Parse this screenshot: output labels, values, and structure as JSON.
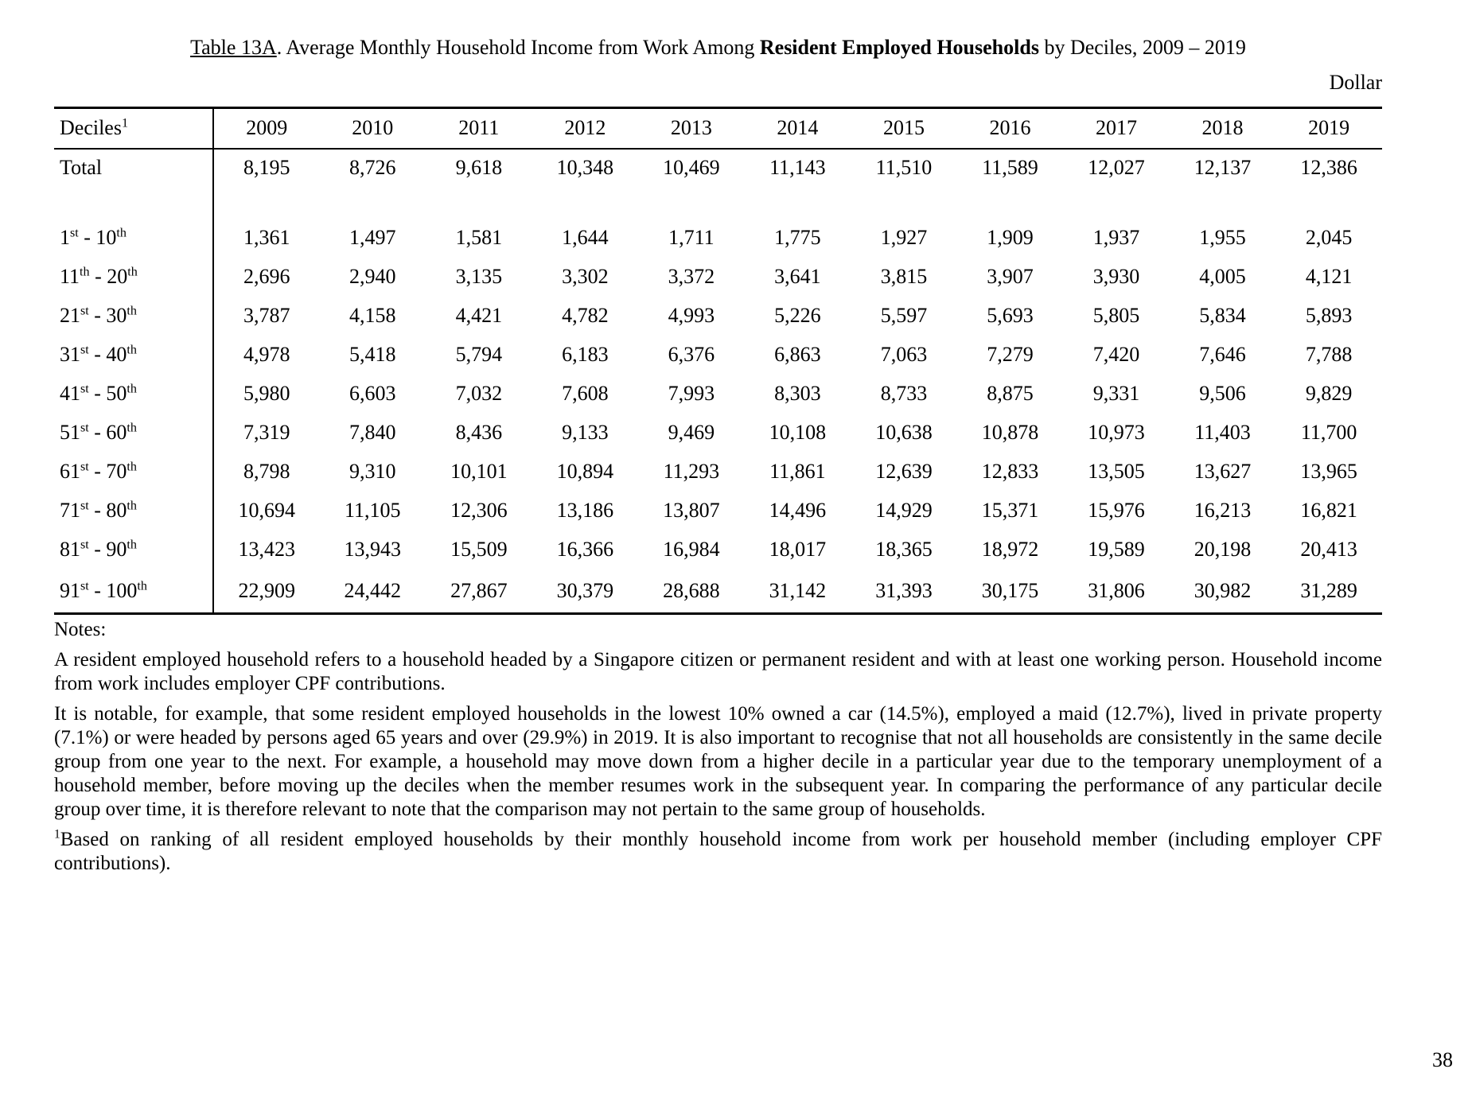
{
  "title": {
    "parts": [
      {
        "text": "Table 13A",
        "underline": true
      },
      {
        "text": ". Average Monthly Household Income from Work Among "
      },
      {
        "text": "Resident Employed Households",
        "bold": true
      },
      {
        "text": " by Deciles, 2009 – 2019"
      }
    ]
  },
  "chart_data": {
    "type": "table",
    "title": "Table 13A. Average Monthly Household Income from Work Among Resident Employed Households by Deciles, 2009 – 2019",
    "unit": "Dollar",
    "row_header": "Deciles^{1}",
    "columns": [
      "2009",
      "2010",
      "2011",
      "2012",
      "2013",
      "2014",
      "2015",
      "2016",
      "2017",
      "2018",
      "2019"
    ],
    "rows": [
      {
        "label": "Total",
        "values": [
          "8,195",
          "8,726",
          "9,618",
          "10,348",
          "10,469",
          "11,143",
          "11,510",
          "11,589",
          "12,027",
          "12,137",
          "12,386"
        ]
      },
      {
        "label": "1^{st} - 10^{th}",
        "values": [
          "1,361",
          "1,497",
          "1,581",
          "1,644",
          "1,711",
          "1,775",
          "1,927",
          "1,909",
          "1,937",
          "1,955",
          "2,045"
        ]
      },
      {
        "label": "11^{th} - 20^{th}",
        "values": [
          "2,696",
          "2,940",
          "3,135",
          "3,302",
          "3,372",
          "3,641",
          "3,815",
          "3,907",
          "3,930",
          "4,005",
          "4,121"
        ]
      },
      {
        "label": "21^{st} - 30^{th}",
        "values": [
          "3,787",
          "4,158",
          "4,421",
          "4,782",
          "4,993",
          "5,226",
          "5,597",
          "5,693",
          "5,805",
          "5,834",
          "5,893"
        ]
      },
      {
        "label": "31^{st} - 40^{th}",
        "values": [
          "4,978",
          "5,418",
          "5,794",
          "6,183",
          "6,376",
          "6,863",
          "7,063",
          "7,279",
          "7,420",
          "7,646",
          "7,788"
        ]
      },
      {
        "label": "41^{st} - 50^{th}",
        "values": [
          "5,980",
          "6,603",
          "7,032",
          "7,608",
          "7,993",
          "8,303",
          "8,733",
          "8,875",
          "9,331",
          "9,506",
          "9,829"
        ]
      },
      {
        "label": "51^{st} - 60^{th}",
        "values": [
          "7,319",
          "7,840",
          "8,436",
          "9,133",
          "9,469",
          "10,108",
          "10,638",
          "10,878",
          "10,973",
          "11,403",
          "11,700"
        ]
      },
      {
        "label": "61^{st} - 70^{th}",
        "values": [
          "8,798",
          "9,310",
          "10,101",
          "10,894",
          "11,293",
          "11,861",
          "12,639",
          "12,833",
          "13,505",
          "13,627",
          "13,965"
        ]
      },
      {
        "label": "71^{st} - 80^{th}",
        "values": [
          "10,694",
          "11,105",
          "12,306",
          "13,186",
          "13,807",
          "14,496",
          "14,929",
          "15,371",
          "15,976",
          "16,213",
          "16,821"
        ]
      },
      {
        "label": "81^{st} - 90^{th}",
        "values": [
          "13,423",
          "13,943",
          "15,509",
          "16,366",
          "16,984",
          "18,017",
          "18,365",
          "18,972",
          "19,589",
          "20,198",
          "20,413"
        ]
      },
      {
        "label": "91^{st} - 100^{th}",
        "values": [
          "22,909",
          "24,442",
          "27,867",
          "30,379",
          "28,688",
          "31,142",
          "31,393",
          "30,175",
          "31,806",
          "30,982",
          "31,289"
        ]
      }
    ]
  },
  "notes": {
    "heading": "Notes:",
    "paragraphs": [
      "A resident employed household refers to a household headed by a Singapore citizen or permanent resident and with at least one working person. Household income from work includes employer CPF contributions.",
      "It is notable, for example, that some resident employed households in the lowest 10% owned a car (14.5%), employed a maid (12.7%), lived in private property (7.1%) or were headed by persons aged 65 years and over (29.9%) in 2019. It is also important to recognise that not all households are consistently in the same decile group from one year to the next. For example, a household may move down from a higher decile in a particular year due to the temporary unemployment of a household member, before moving up the deciles when the member resumes work in the subsequent year. In comparing the performance of any particular decile group over time, it is therefore relevant to note that the comparison may not pertain to the same group of households."
    ],
    "footnote": "^{1}Based on ranking of all resident employed households by their monthly household income from work per household member (including employer CPF contributions)."
  },
  "page_number": "38"
}
